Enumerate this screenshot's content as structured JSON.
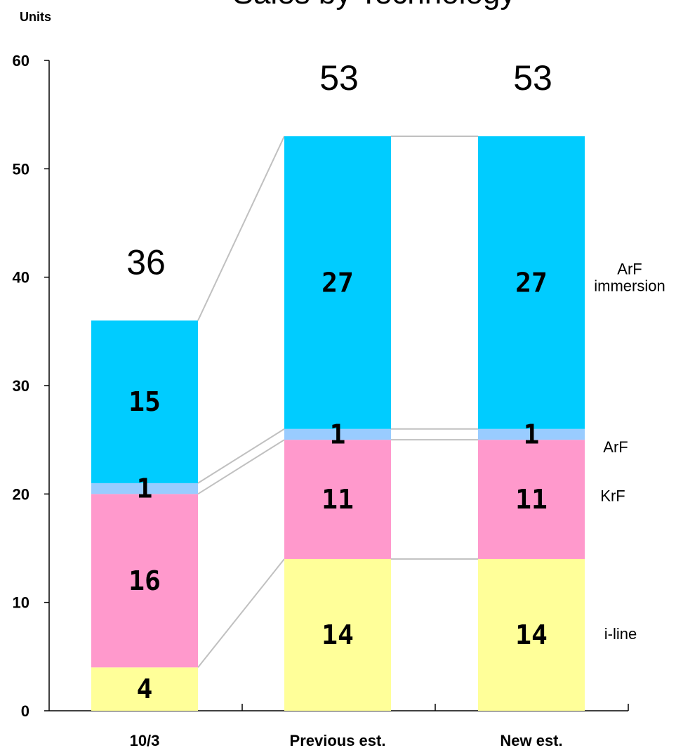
{
  "chart_data": {
    "type": "bar",
    "stacked": true,
    "title": "Sales by Technology",
    "ylabel": "Units",
    "ylim": [
      0,
      60
    ],
    "yticks": [
      0,
      10,
      20,
      30,
      40,
      50,
      60
    ],
    "categories": [
      "10/3",
      "Previous est.",
      "New est."
    ],
    "series": [
      {
        "name": "i-line",
        "values": [
          4,
          14,
          14
        ],
        "color": "#FFFF99"
      },
      {
        "name": "KrF",
        "values": [
          16,
          11,
          11
        ],
        "color": "#FF99CC"
      },
      {
        "name": "ArF",
        "values": [
          1,
          1,
          1
        ],
        "color": "#99CCFF"
      },
      {
        "name": "ArF immersion",
        "values": [
          15,
          27,
          27
        ],
        "color": "#00CCFF"
      }
    ],
    "totals": [
      36,
      53,
      53
    ],
    "connector_lines": true,
    "connector_color": "#C0C0C0",
    "legend": "right"
  }
}
